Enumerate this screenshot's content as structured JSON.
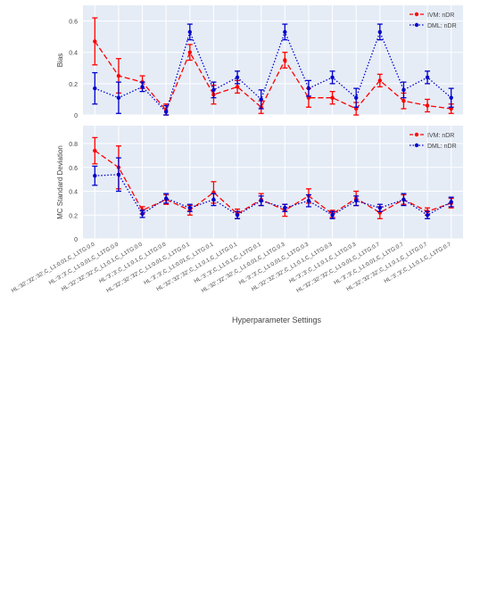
{
  "figure": {
    "xlabel": "Hyperparameter Settings"
  },
  "colors": {
    "plot_bg": "#e5ecf6",
    "grid": "#ffffff",
    "ivm": "#ff0000",
    "dml": "#0000cc",
    "text": "#444444"
  },
  "chart_data": [
    {
      "type": "line",
      "title": "",
      "ylabel": "Bias",
      "xlabel": "",
      "ylim": [
        0,
        0.7
      ],
      "yticks": [
        0,
        0.2,
        0.4,
        0.6
      ],
      "ytick_labels": [
        "0",
        "0.2",
        "0.4",
        "0.6"
      ],
      "grid": true,
      "legend": "top-right",
      "categories": [
        "HL:'32','32','32',C_L1:0.01,C_L1TG:0.0",
        "HL:'3','3',C_L1:0.01,C_L1TG:0.0",
        "HL:'32','32','32',C_L1:0.1,C_L1TG:0.0",
        "HL:'3','3',C_L1:0.1,C_L1TG:0.0",
        "HL:'32','32','32',C_L1:0.01,C_L1TG:0.1",
        "HL:'3','3',C_L1:0.01,C_L1TG:0.1",
        "HL:'32','32','32',C_L1:0.1,C_L1TG:0.1",
        "HL:'3','3',C_L1:0.1,C_L1TG:0.1",
        "HL:'32','32','32',C_L1:0.01,C_L1TG:0.3",
        "HL:'3','3',C_L1:0.01,C_L1TG:0.3",
        "HL:'32','32','32',C_L1:0.1,C_L1TG:0.3",
        "HL:'3','3',C_L1:0.1,C_L1TG:0.3",
        "HL:'32','32','32',C_L1:0.01,C_L1TG:0.7",
        "HL:'3','3',C_L1:0.01,C_L1TG:0.7",
        "HL:'32','32','32',C_L1:0.1,C_L1TG:0.7",
        "HL:'3','3',C_L1:0.1,C_L1TG:0.7"
      ],
      "series": [
        {
          "name": "IVM: nDR",
          "color": "#ff0000",
          "dash": "dash",
          "values": [
            0.47,
            0.25,
            0.21,
            0.03,
            0.4,
            0.13,
            0.18,
            0.05,
            0.35,
            0.11,
            0.11,
            0.04,
            0.22,
            0.09,
            0.06,
            0.04
          ],
          "error": [
            0.15,
            0.11,
            0.04,
            0.04,
            0.05,
            0.06,
            0.04,
            0.04,
            0.05,
            0.06,
            0.04,
            0.04,
            0.04,
            0.05,
            0.04,
            0.03
          ]
        },
        {
          "name": "DML: nDR",
          "color": "#0000cc",
          "dash": "dot",
          "values": [
            0.17,
            0.11,
            0.18,
            0.02,
            0.53,
            0.16,
            0.24,
            0.1,
            0.53,
            0.17,
            0.24,
            0.11,
            0.53,
            0.16,
            0.24,
            0.11
          ],
          "error": [
            0.1,
            0.1,
            0.03,
            0.04,
            0.05,
            0.05,
            0.04,
            0.06,
            0.05,
            0.05,
            0.04,
            0.06,
            0.05,
            0.05,
            0.04,
            0.06
          ]
        }
      ]
    },
    {
      "type": "line",
      "title": "",
      "ylabel": "MC Standard Deviation",
      "xlabel": "Hyperparameter Settings",
      "ylim": [
        0,
        0.95
      ],
      "yticks": [
        0,
        0.2,
        0.4,
        0.6,
        0.8
      ],
      "ytick_labels": [
        "0",
        "0.2",
        "0.4",
        "0.6",
        "0.8"
      ],
      "grid": true,
      "legend": "top-right",
      "series": [
        {
          "name": "IVM: nDR",
          "color": "#ff0000",
          "dash": "dash",
          "values": [
            0.74,
            0.6,
            0.24,
            0.33,
            0.24,
            0.39,
            0.21,
            0.33,
            0.24,
            0.36,
            0.21,
            0.34,
            0.22,
            0.33,
            0.23,
            0.3
          ],
          "error": [
            0.11,
            0.18,
            0.03,
            0.04,
            0.04,
            0.09,
            0.04,
            0.05,
            0.05,
            0.06,
            0.03,
            0.06,
            0.05,
            0.04,
            0.03,
            0.04
          ]
        },
        {
          "name": "DML: nDR",
          "color": "#0000cc",
          "dash": "dot",
          "values": [
            0.53,
            0.54,
            0.21,
            0.34,
            0.26,
            0.33,
            0.2,
            0.32,
            0.26,
            0.32,
            0.2,
            0.32,
            0.26,
            0.33,
            0.2,
            0.31
          ],
          "error": [
            0.08,
            0.14,
            0.03,
            0.04,
            0.03,
            0.05,
            0.03,
            0.04,
            0.03,
            0.05,
            0.03,
            0.04,
            0.03,
            0.05,
            0.03,
            0.04
          ]
        }
      ]
    }
  ]
}
